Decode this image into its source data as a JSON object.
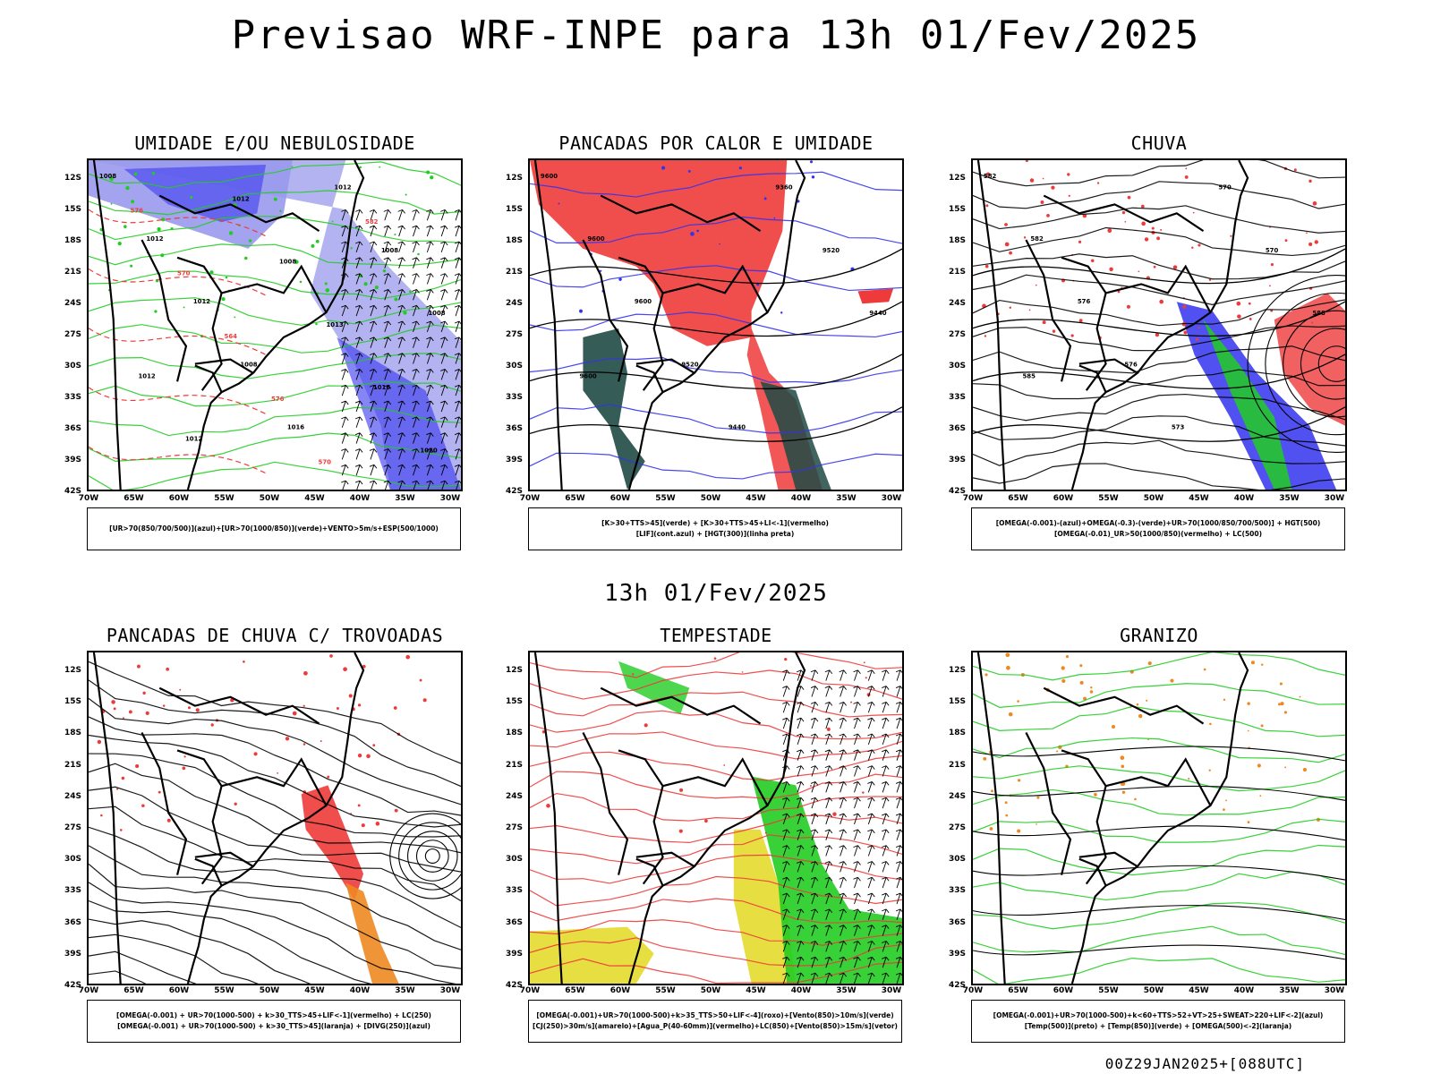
{
  "title": "Previsao WRF-INPE  para 13h 01/Fev/2025",
  "mid_title": "13h 01/Fev/2025",
  "footer": "00Z29JAN2025+[088UTC]",
  "axes": {
    "lat_labels": [
      "12S",
      "15S",
      "18S",
      "21S",
      "24S",
      "27S",
      "30S",
      "33S",
      "36S",
      "39S",
      "42S"
    ],
    "lon_labels": [
      "70W",
      "65W",
      "60W",
      "55W",
      "50W",
      "45W",
      "40W",
      "35W",
      "30W"
    ]
  },
  "colors": {
    "green": "#22cc22",
    "red": "#ee3a3a",
    "blue": "#3333ee",
    "lightblue": "#9999ee",
    "darkgreen": "#1f4a44",
    "orange": "#ee8822",
    "yellow": "#e4dc2c",
    "black": "#000000"
  },
  "panels": [
    {
      "id": "umidade",
      "title": "UMIDADE E/OU NEBULOSIDADE",
      "legend": [
        "[UR>70(850/700/500)](azul)+[UR>70(1000/850)](verde)+VENTO>5m/s+ESP(500/1000)"
      ],
      "labels": [
        "1008",
        "1012",
        "1012",
        "1008",
        "1016",
        "1012",
        "1008",
        "1008",
        "1012",
        "1012",
        "1012",
        "1008",
        "1013",
        "1016",
        "1020",
        "576",
        "570",
        "564",
        "576",
        "570",
        "582"
      ]
    },
    {
      "id": "pancadas",
      "title": "PANCADAS POR CALOR E UMIDADE",
      "legend": [
        "[K>30+TTS>45](verde)  +  [K>30+TTS>45+LI<-1](vermelho)",
        "[LIF](cont.azul)  +  [HGT(300)](linha preta)"
      ],
      "labels": [
        "9600",
        "9600",
        "9600",
        "9520",
        "9440",
        "9360",
        "9520",
        "9440",
        "9600"
      ]
    },
    {
      "id": "chuva",
      "title": "CHUVA",
      "legend": [
        "[OMEGA(-0.001)-(azul)+OMEGA(-0.3)-(verde)+UR>70(1000/850/700/500)]  +  HGT(500)",
        "[OMEGA(-0.01)_UR>50(1000/850)(vermelho)  +  LC(500)"
      ],
      "labels": [
        "582",
        "582",
        "576",
        "576",
        "573",
        "570",
        "570",
        "588",
        "585"
      ]
    },
    {
      "id": "trovoadas",
      "title": "PANCADAS DE CHUVA C/ TROVOADAS",
      "legend": [
        "[OMEGA(-0.001)  +  UR>70(1000-500)  +  k>30_TTS>45+LIF<-1](vermelho)  +  LC(250)",
        "[OMEGA(-0.001)  +  UR>70(1000-500)  +  k>30_TTS>45](laranja)  +  [DIVG(250)](azul)"
      ],
      "labels": []
    },
    {
      "id": "tempestade",
      "title": "TEMPESTADE",
      "legend": [
        "[OMEGA(-0.001)+UR>70(1000-500)+k>35_TTS>50+LIF<-4](roxo)+[Vento(850)>10m/s](verde)",
        "[CJ(250)>30m/s](amarelo)+[Agua_P(40-60mm)](vermelho)+LC(850)+[Vento(850)>15m/s](vetor)"
      ],
      "labels": []
    },
    {
      "id": "granizo",
      "title": "GRANIZO",
      "legend": [
        "[OMEGA(-0.001)+UR>70(1000-500)+k<60+TTS>52+VT>25+SWEAT>220+LIF<-2](azul)",
        "[Temp(500)](preto)  +  [Temp(850)](verde)  +  [OMEGA(500)<-2](laranja)"
      ],
      "labels": []
    }
  ]
}
